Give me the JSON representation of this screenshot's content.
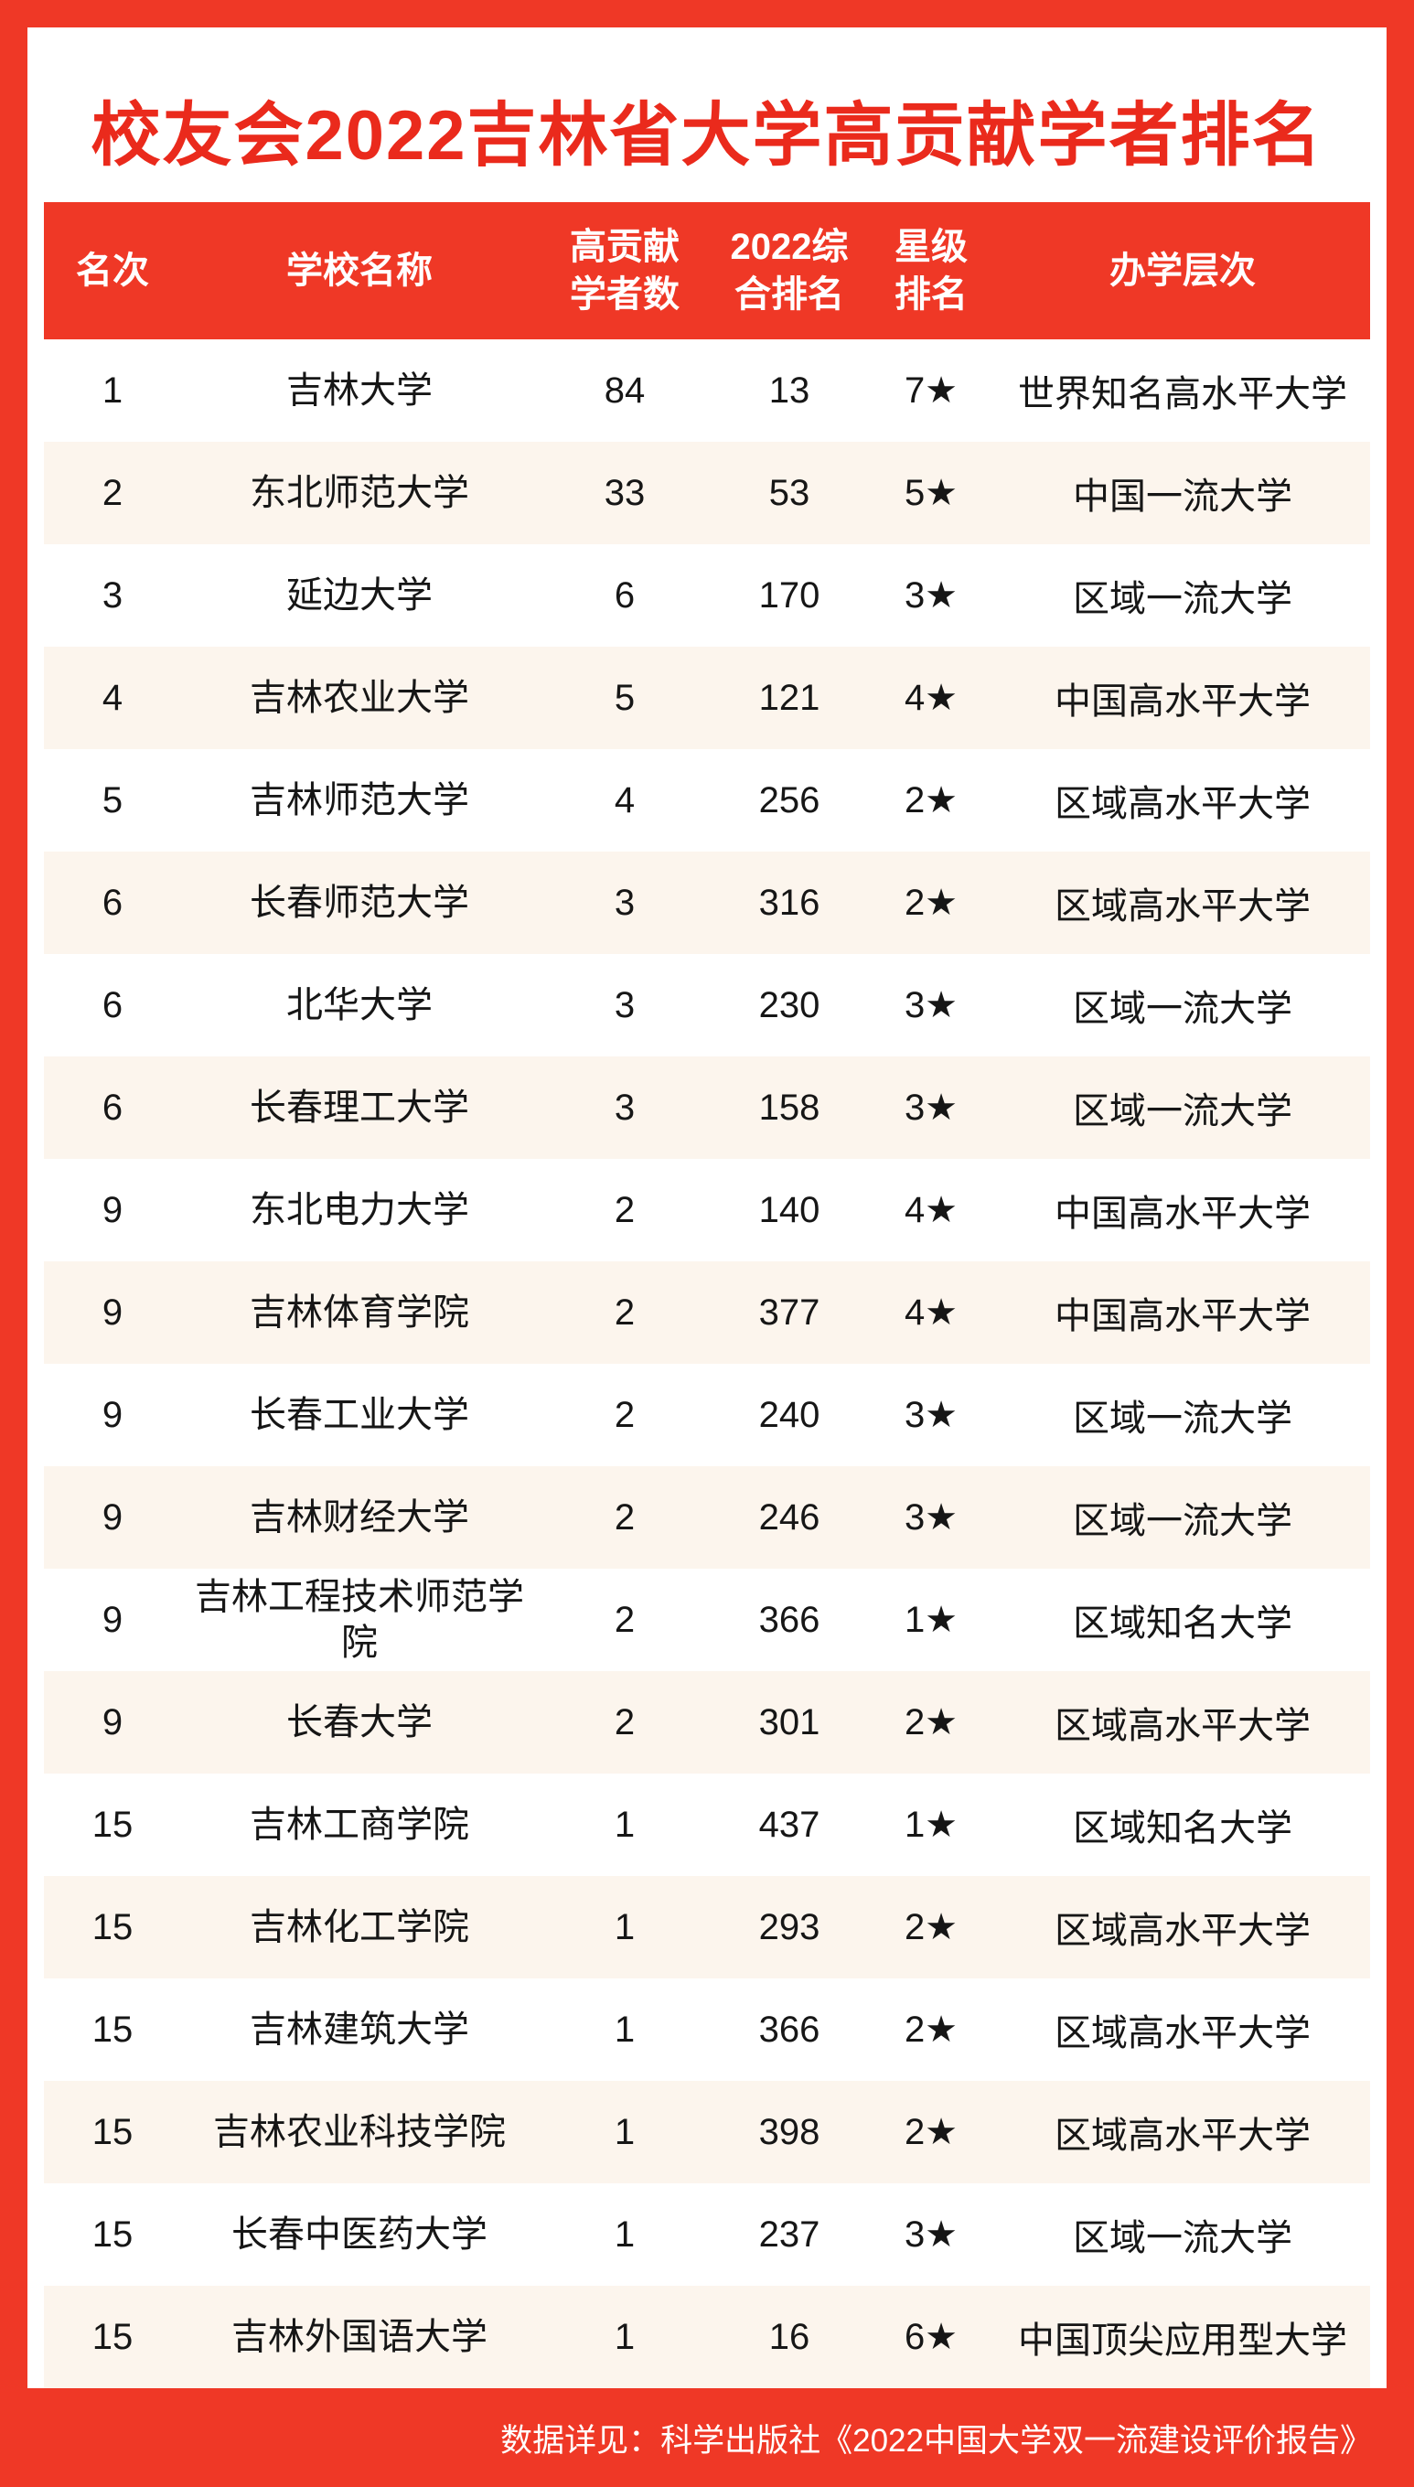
{
  "colors": {
    "accent": "#EF3826",
    "title": "#EA2A1C",
    "row_alt": "#FCF5ED",
    "header_text": "#FFFFFF",
    "body_text": "#161616"
  },
  "footer": {
    "source_note": "数据详见：科学出版社《2022中国大学双一流建设评价报告》"
  },
  "chart_data": {
    "type": "table",
    "title": "校友会2022吉林省大学高贡献学者排名",
    "columns": [
      "名次",
      "学校名称",
      "高贡献\n学者数",
      "2022综\n合排名",
      "星级\n排名",
      "办学层次"
    ],
    "rows": [
      [
        "1",
        "吉林大学",
        "84",
        "13",
        "7★",
        "世界知名高水平大学"
      ],
      [
        "2",
        "东北师范大学",
        "33",
        "53",
        "5★",
        "中国一流大学"
      ],
      [
        "3",
        "延边大学",
        "6",
        "170",
        "3★",
        "区域一流大学"
      ],
      [
        "4",
        "吉林农业大学",
        "5",
        "121",
        "4★",
        "中国高水平大学"
      ],
      [
        "5",
        "吉林师范大学",
        "4",
        "256",
        "2★",
        "区域高水平大学"
      ],
      [
        "6",
        "长春师范大学",
        "3",
        "316",
        "2★",
        "区域高水平大学"
      ],
      [
        "6",
        "北华大学",
        "3",
        "230",
        "3★",
        "区域一流大学"
      ],
      [
        "6",
        "长春理工大学",
        "3",
        "158",
        "3★",
        "区域一流大学"
      ],
      [
        "9",
        "东北电力大学",
        "2",
        "140",
        "4★",
        "中国高水平大学"
      ],
      [
        "9",
        "吉林体育学院",
        "2",
        "377",
        "4★",
        "中国高水平大学"
      ],
      [
        "9",
        "长春工业大学",
        "2",
        "240",
        "3★",
        "区域一流大学"
      ],
      [
        "9",
        "吉林财经大学",
        "2",
        "246",
        "3★",
        "区域一流大学"
      ],
      [
        "9",
        "吉林工程技术师范学院",
        "2",
        "366",
        "1★",
        "区域知名大学"
      ],
      [
        "9",
        "长春大学",
        "2",
        "301",
        "2★",
        "区域高水平大学"
      ],
      [
        "15",
        "吉林工商学院",
        "1",
        "437",
        "1★",
        "区域知名大学"
      ],
      [
        "15",
        "吉林化工学院",
        "1",
        "293",
        "2★",
        "区域高水平大学"
      ],
      [
        "15",
        "吉林建筑大学",
        "1",
        "366",
        "2★",
        "区域高水平大学"
      ],
      [
        "15",
        "吉林农业科技学院",
        "1",
        "398",
        "2★",
        "区域高水平大学"
      ],
      [
        "15",
        "长春中医药大学",
        "1",
        "237",
        "3★",
        "区域一流大学"
      ],
      [
        "15",
        "吉林外国语大学",
        "1",
        "16",
        "6★",
        "中国顶尖应用型大学"
      ]
    ]
  }
}
